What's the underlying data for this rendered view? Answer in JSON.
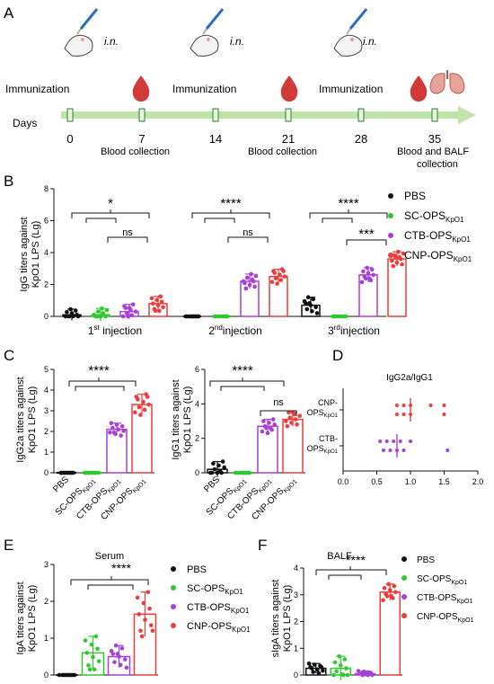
{
  "colors": {
    "PBS": "#111111",
    "SC": "#2ec92e",
    "CTB": "#a93fd9",
    "CNP": "#ee3b3b",
    "timeline": "#bfe3a8",
    "timeline_box": "#2e7d32",
    "blood": "#d23a3a",
    "lung": "#e8a49a"
  },
  "panel_labels": {
    "A": "A",
    "B": "B",
    "C": "C",
    "D": "D",
    "E": "E",
    "F": "F"
  },
  "timeline": {
    "days_label": "Days",
    "days": [
      "0",
      "7",
      "14",
      "21",
      "28",
      "35"
    ],
    "immunization_label": "Immunization",
    "route_label": "i.n.",
    "collections": [
      "Blood collection",
      "Blood collection",
      "Blood and BALF",
      "collection"
    ],
    "icons": [
      "pipette-icon",
      "mouse-icon",
      "blood-drop-icon",
      "lungs-icon"
    ]
  },
  "legend": {
    "pbs": "PBS",
    "groups": [
      {
        "base": "SC-OPS",
        "sub": "KpO1"
      },
      {
        "base": "CTB-OPS",
        "sub": "KpO1"
      },
      {
        "base": "CNP-OPS",
        "sub": "KpO1"
      }
    ]
  },
  "sig": {
    "four": "****",
    "three": "***",
    "one": "*",
    "ns": "ns"
  },
  "chart_data": [
    {
      "panel": "B",
      "type": "bar",
      "ylabel_lines": [
        "IgG titers against",
        "KpO1 LPS (Lg)"
      ],
      "ylim": [
        0,
        8
      ],
      "yticks": [
        "0",
        "2",
        "4",
        "6",
        "8"
      ],
      "categories": [
        {
          "num": "1",
          "sup": "st",
          "rest": " injection"
        },
        {
          "num": "2",
          "sup": "nd",
          "rest": "injection"
        },
        {
          "num": "3",
          "sup": "rd",
          "rest": "injection"
        }
      ],
      "series": [
        {
          "name": "PBS",
          "values": [
            0.1,
            0.0,
            0.7
          ]
        },
        {
          "name": "SC-OPS",
          "values": [
            0.1,
            0.0,
            0.0
          ]
        },
        {
          "name": "CTB-OPS",
          "values": [
            0.3,
            2.2,
            2.6
          ]
        },
        {
          "name": "CNP-OPS",
          "values": [
            0.8,
            2.5,
            3.6
          ]
        }
      ]
    },
    {
      "panel": "C-left",
      "type": "bar",
      "ylabel_lines": [
        "IgG2a titers against",
        "KpO1 LPS (Lg)"
      ],
      "ylim": [
        0,
        5
      ],
      "yticks": [
        "0",
        "1",
        "2",
        "3",
        "4",
        "5"
      ],
      "categories": [
        "PBS",
        "SC-OPS",
        "CTB-OPS",
        "CNP-OPS"
      ],
      "values": [
        0.0,
        0.0,
        2.1,
        3.3
      ]
    },
    {
      "panel": "C-right",
      "type": "bar",
      "ylabel_lines": [
        "IgG1 titers against",
        "KpO1 LPS (Lg)"
      ],
      "ylim": [
        0,
        6
      ],
      "yticks": [
        "0",
        "2",
        "4",
        "6"
      ],
      "categories": [
        "PBS",
        "SC-OPS",
        "CTB-OPS",
        "CNP-OPS"
      ],
      "values": [
        0.2,
        0.0,
        2.7,
        3.1
      ]
    },
    {
      "panel": "D",
      "type": "scatter",
      "title": "IgG2a/IgG1",
      "xlim": [
        0.0,
        2.0
      ],
      "xticks": [
        "0.0",
        "0.5",
        "1.0",
        "1.5",
        "2.0"
      ],
      "rows": [
        {
          "label": "CNP-",
          "label2": "OPS",
          "sub": "KpO1",
          "points": [
            0.8,
            0.8,
            0.9,
            0.9,
            1.0,
            1.0,
            1.3,
            1.5,
            1.5
          ],
          "median": 1.0
        },
        {
          "label": "CTB-",
          "label2": "OPS",
          "sub": "KpO1",
          "points": [
            0.55,
            0.6,
            0.65,
            0.7,
            0.75,
            0.8,
            0.85,
            0.9,
            1.0,
            1.55
          ],
          "median": 0.8
        }
      ]
    },
    {
      "panel": "E",
      "type": "bar",
      "title": "Serum",
      "ylabel_lines": [
        "IgA titers against",
        "KpO1 LPS (Lg)"
      ],
      "ylim": [
        0,
        3
      ],
      "yticks": [
        "0",
        "1",
        "2",
        "3"
      ],
      "categories": [
        "PBS",
        "SC-OPS",
        "CTB-OPS",
        "CNP-OPS"
      ],
      "values": [
        0.0,
        0.6,
        0.5,
        1.65
      ]
    },
    {
      "panel": "F",
      "type": "bar",
      "title": "BALF",
      "ylabel_lines": [
        "sIgA titers against",
        "KpO1 LPS (Lg)"
      ],
      "ylim": [
        0,
        4
      ],
      "yticks": [
        "0",
        "1",
        "2",
        "3",
        "4"
      ],
      "categories": [
        "PBS",
        "SC-OPS",
        "CTB-OPS",
        "CNP-OPS"
      ],
      "values": [
        0.25,
        0.25,
        0.05,
        3.1
      ]
    }
  ]
}
